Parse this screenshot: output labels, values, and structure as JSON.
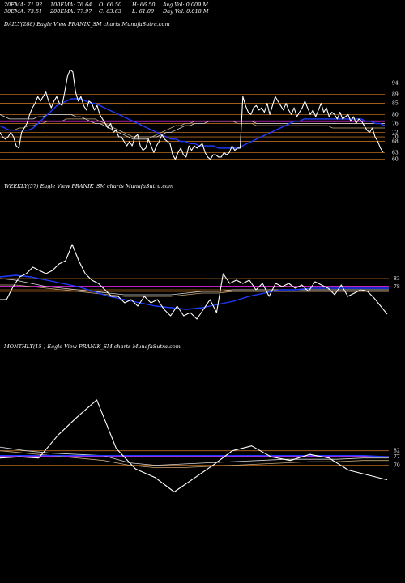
{
  "header": {
    "ema20": "20EMA: 71.92",
    "ema30": "30EMA: 73.51",
    "ema100": "100EMA: 76.64",
    "ema200": "200EMA: 77.97",
    "open": "O: 66.50",
    "close": "C: 63.63",
    "high": "H: 66.50",
    "low": "L: 61.00",
    "avg_vol": "Avg Vol: 0.009 M",
    "day_vol": "Day Vol: 0.018 M"
  },
  "colors": {
    "background": "#000000",
    "price": "#ffffff",
    "ema_fast": "#1e3cff",
    "ema_slow": "#ff2cff",
    "ma_light": "#d8d8d8",
    "ma_tan": "#c8a878",
    "level_line": "#b86a1e"
  },
  "chart_data": [
    {
      "type": "line",
      "title": "DAILY(288) Eagle   View  PRANIK_SM charts MunafaSutra.com",
      "xlabel": "",
      "ylabel": "",
      "ylim": [
        57,
        104
      ],
      "yticks": [
        60,
        63,
        68,
        70,
        72,
        76,
        80,
        85,
        89,
        94
      ],
      "level_lines": [
        94,
        89,
        85,
        80,
        76,
        72,
        70,
        68,
        63,
        60
      ],
      "series": [
        {
          "role": "price",
          "values": [
            72,
            70,
            69,
            70,
            72,
            70,
            66,
            65,
            72,
            74,
            76,
            80,
            83,
            85,
            88,
            86,
            88,
            90,
            86,
            83,
            86,
            88,
            85,
            84,
            90,
            97,
            100,
            99,
            90,
            86,
            88,
            84,
            82,
            86,
            85,
            82,
            84,
            80,
            78,
            76,
            74,
            76,
            72,
            73,
            70,
            70,
            68,
            66,
            68,
            66,
            70,
            71,
            66,
            64,
            65,
            69,
            66,
            63,
            66,
            68,
            71,
            69,
            68,
            67,
            62,
            60,
            63,
            65,
            62,
            61,
            66,
            64,
            66,
            65,
            66,
            67,
            63,
            61,
            60,
            62,
            62,
            61,
            61,
            63,
            62,
            63,
            66,
            64,
            65,
            65,
            88,
            84,
            81,
            80,
            83,
            84,
            82,
            83,
            81,
            85,
            80,
            84,
            88,
            86,
            84,
            82,
            85,
            82,
            80,
            83,
            79,
            81,
            83,
            86,
            83,
            80,
            82,
            79,
            82,
            85,
            81,
            83,
            79,
            81,
            80,
            78,
            81,
            78,
            79,
            80,
            77,
            79,
            76,
            78,
            77,
            75,
            73,
            72,
            74,
            70,
            68,
            65,
            63
          ]
        },
        {
          "role": "ema_fast",
          "values": [
            75,
            74,
            73,
            73,
            73,
            73,
            73,
            74,
            76,
            78,
            80,
            82,
            84,
            85,
            86,
            87,
            87,
            87,
            86,
            85,
            85,
            84,
            83,
            82,
            81,
            80,
            79,
            78,
            77,
            76,
            75,
            74,
            73,
            72,
            71,
            70,
            69,
            69,
            68,
            68,
            67,
            67,
            66,
            66,
            66,
            66,
            65,
            65,
            65,
            65,
            65,
            66,
            67,
            68,
            69,
            70,
            71,
            72,
            73,
            74,
            75,
            76,
            77,
            77,
            78,
            78,
            78,
            78,
            78,
            78,
            78,
            78,
            78,
            78,
            78,
            78,
            78,
            77,
            77,
            76,
            76,
            75
          ]
        },
        {
          "role": "ema_slow",
          "values": [
            77,
            77,
            77,
            77,
            77,
            77,
            77,
            77,
            77,
            77,
            77,
            77,
            77,
            77,
            77,
            77,
            77,
            77,
            77,
            77,
            77,
            77,
            77,
            77,
            77,
            77,
            77,
            77,
            77,
            77,
            77,
            77,
            77,
            77,
            77,
            77,
            77,
            77,
            77,
            77,
            77,
            77,
            77,
            77,
            77,
            77,
            77,
            77,
            77,
            77,
            77,
            77,
            77,
            77,
            77,
            77,
            77,
            77,
            77,
            77,
            77,
            77,
            77,
            77,
            77,
            77,
            77,
            77,
            77,
            77,
            77,
            77,
            77,
            77,
            77,
            77,
            77,
            77,
            77,
            77,
            77,
            77
          ]
        },
        {
          "role": "ma_light",
          "values": [
            80,
            79,
            78,
            78,
            78,
            78,
            78,
            78,
            79,
            79,
            80,
            80,
            80,
            80,
            80,
            80,
            79,
            79,
            78,
            77,
            76,
            76,
            75,
            74,
            73,
            72,
            71,
            70,
            69,
            69,
            69,
            69,
            70,
            70,
            71,
            72,
            72,
            73,
            74,
            75,
            75,
            76,
            76,
            76,
            77,
            77,
            77,
            77,
            77,
            77,
            77,
            77,
            77,
            77,
            76,
            76,
            76,
            76,
            76,
            76,
            76,
            76,
            76,
            76,
            76,
            76,
            76,
            76,
            76,
            76,
            76,
            76,
            76,
            76,
            76,
            76,
            76,
            76,
            76,
            76,
            76,
            76
          ]
        },
        {
          "role": "ma_tan",
          "values": [
            73,
            73,
            73,
            73,
            74,
            74,
            75,
            75,
            76,
            76,
            77,
            77,
            77,
            77,
            78,
            78,
            78,
            78,
            78,
            78,
            78,
            77,
            76,
            75,
            74,
            73,
            72,
            71,
            70,
            70,
            70,
            70,
            70,
            71,
            72,
            73,
            74,
            75,
            75,
            76,
            76,
            77,
            77,
            77,
            77,
            77,
            77,
            77,
            77,
            77,
            76,
            76,
            76,
            76,
            75,
            75,
            75,
            75,
            75,
            75,
            75,
            75,
            75,
            75,
            75,
            75,
            75,
            75,
            75,
            75,
            74,
            74,
            74,
            74,
            74,
            74,
            74,
            74,
            74,
            74,
            74,
            74
          ]
        }
      ]
    },
    {
      "type": "line",
      "title": "WEEKLY(57) Eagle   View  PRANIK_SM charts MunafaSutra.com",
      "xlabel": "",
      "ylabel": "",
      "ylim": [
        50,
        110
      ],
      "yticks": [
        78,
        83
      ],
      "level_lines": [
        83,
        78,
        76,
        75
      ],
      "series": [
        {
          "role": "price",
          "values": [
            70,
            70,
            78,
            84,
            86,
            90,
            88,
            86,
            88,
            92,
            94,
            104,
            94,
            86,
            82,
            80,
            76,
            72,
            72,
            68,
            70,
            66,
            72,
            68,
            70,
            64,
            60,
            66,
            60,
            62,
            58,
            64,
            70,
            62,
            86,
            80,
            82,
            80,
            82,
            76,
            80,
            72,
            80,
            78,
            80,
            77,
            79,
            75,
            81,
            79,
            77,
            73,
            79,
            72,
            74,
            76,
            75,
            71,
            66,
            61
          ]
        },
        {
          "role": "ema_fast",
          "values": [
            84,
            85,
            84,
            82,
            80,
            78,
            75,
            72,
            70,
            68,
            66,
            65,
            64,
            65,
            67,
            69,
            72,
            74,
            76,
            76,
            77,
            77,
            77,
            77,
            77,
            77
          ]
        },
        {
          "role": "ema_slow",
          "values": [
            78,
            78,
            78,
            78,
            78,
            78,
            78,
            78,
            78,
            78,
            78,
            78,
            78,
            78,
            78,
            78,
            78,
            78,
            78,
            78,
            78,
            78,
            78,
            78,
            78,
            78
          ]
        },
        {
          "role": "ma_light",
          "values": [
            83,
            82,
            80,
            78,
            77,
            76,
            75,
            74,
            73,
            73,
            73,
            73,
            74,
            75,
            75,
            76,
            76,
            76,
            76,
            76,
            76,
            76,
            76,
            76,
            76,
            76
          ]
        },
        {
          "role": "ma_tan",
          "values": [
            79,
            79,
            78,
            77,
            76,
            75,
            74,
            73,
            72,
            72,
            72,
            72,
            73,
            74,
            74,
            75,
            75,
            75,
            75,
            75,
            75,
            75,
            75,
            75,
            75,
            75
          ]
        }
      ]
    },
    {
      "type": "line",
      "title": "MONTHLY(15                    ) Eagle   View  PRANIK_SM charts MunafaSutra.com",
      "xlabel": "",
      "ylabel": "",
      "ylim": [
        45,
        140
      ],
      "yticks": [
        70,
        77,
        82
      ],
      "level_lines": [
        82,
        77,
        70
      ],
      "series": [
        {
          "role": "price",
          "values": [
            76,
            77,
            76,
            95,
            110,
            124,
            84,
            67,
            60,
            48,
            59,
            70,
            82,
            86,
            77,
            74,
            79,
            76,
            66,
            62,
            58
          ]
        },
        {
          "role": "ema_fast",
          "values": [
            78,
            78,
            78,
            78,
            78,
            78,
            78,
            78,
            78,
            78,
            78,
            78,
            78,
            78,
            78,
            77
          ]
        },
        {
          "role": "ema_slow",
          "values": [
            77,
            77,
            77,
            77,
            77,
            77,
            77,
            77,
            77,
            77,
            77,
            77,
            77,
            77,
            77,
            77
          ]
        },
        {
          "role": "ma_light",
          "values": [
            85,
            82,
            80,
            79,
            78,
            72,
            70,
            71,
            72,
            73,
            74,
            75,
            75,
            75,
            76,
            76
          ]
        },
        {
          "role": "ma_tan",
          "values": [
            82,
            80,
            78,
            76,
            74,
            70,
            68,
            68,
            69,
            70,
            71,
            72,
            73,
            73,
            74,
            74
          ]
        }
      ]
    }
  ]
}
